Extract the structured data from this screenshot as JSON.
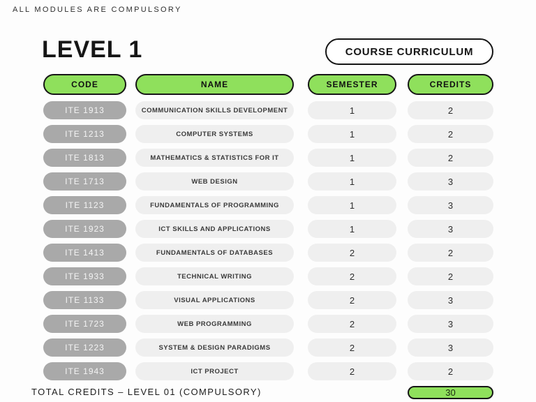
{
  "page": {
    "top_note": "ALL MODULES ARE COMPULSORY",
    "title": "LEVEL 1",
    "badge_label": "COURSE CURRICULUM"
  },
  "table": {
    "headers": [
      "CODE",
      "NAME",
      "SEMESTER",
      "CREDITS"
    ],
    "rows": [
      {
        "code": "ITE 1913",
        "name": "COMMUNICATION SKILLS DEVELOPMENT",
        "semester": "1",
        "credits": "2"
      },
      {
        "code": "ITE 1213",
        "name": "COMPUTER SYSTEMS",
        "semester": "1",
        "credits": "2"
      },
      {
        "code": "ITE 1813",
        "name": "MATHEMATICS & STATISTICS FOR IT",
        "semester": "1",
        "credits": "2"
      },
      {
        "code": "ITE 1713",
        "name": "WEB DESIGN",
        "semester": "1",
        "credits": "3"
      },
      {
        "code": "ITE 1123",
        "name": "FUNDAMENTALS OF PROGRAMMING",
        "semester": "1",
        "credits": "3"
      },
      {
        "code": "ITE 1923",
        "name": "ICT SKILLS AND APPLICATIONS",
        "semester": "1",
        "credits": "3"
      },
      {
        "code": "ITE 1413",
        "name": "FUNDAMENTALS OF DATABASES",
        "semester": "2",
        "credits": "2"
      },
      {
        "code": "ITE 1933",
        "name": "TECHNICAL WRITING",
        "semester": "2",
        "credits": "2"
      },
      {
        "code": "ITE 1133",
        "name": "VISUAL APPLICATIONS",
        "semester": "2",
        "credits": "3"
      },
      {
        "code": "ITE 1723",
        "name": "WEB PROGRAMMING",
        "semester": "2",
        "credits": "3"
      },
      {
        "code": "ITE 1223",
        "name": "SYSTEM & DESIGN PARADIGMS",
        "semester": "2",
        "credits": "3"
      },
      {
        "code": "ITE 1943",
        "name": "ICT PROJECT",
        "semester": "2",
        "credits": "2"
      }
    ]
  },
  "footer": {
    "label": "TOTAL CREDITS – LEVEL 01 (COMPULSORY)",
    "total": "30"
  },
  "colors": {
    "accent_green": "#8FE05C",
    "code_pill_gray": "#A9A9A9",
    "row_pill_gray": "#EFEFEF",
    "outline_black": "#161616",
    "background": "#FDFDFD"
  }
}
